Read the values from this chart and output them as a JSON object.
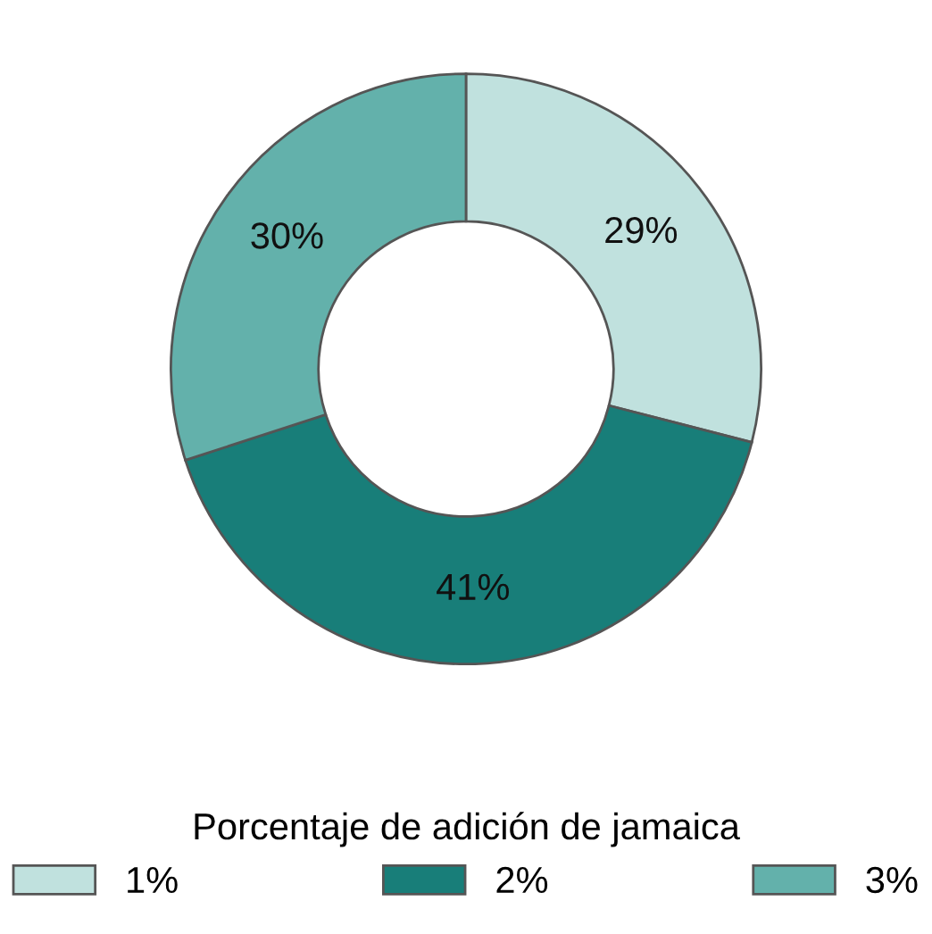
{
  "chart_data": {
    "type": "donut",
    "categories": [
      "1%",
      "2%",
      "3%"
    ],
    "values": [
      29,
      41,
      30
    ],
    "value_labels": [
      "29%",
      "41%",
      "30%"
    ],
    "colors": [
      "#c0e1de",
      "#187e79",
      "#63b1ab"
    ],
    "legend_title": "Porcentaje de adición de jamaica",
    "legend": "bottom"
  }
}
